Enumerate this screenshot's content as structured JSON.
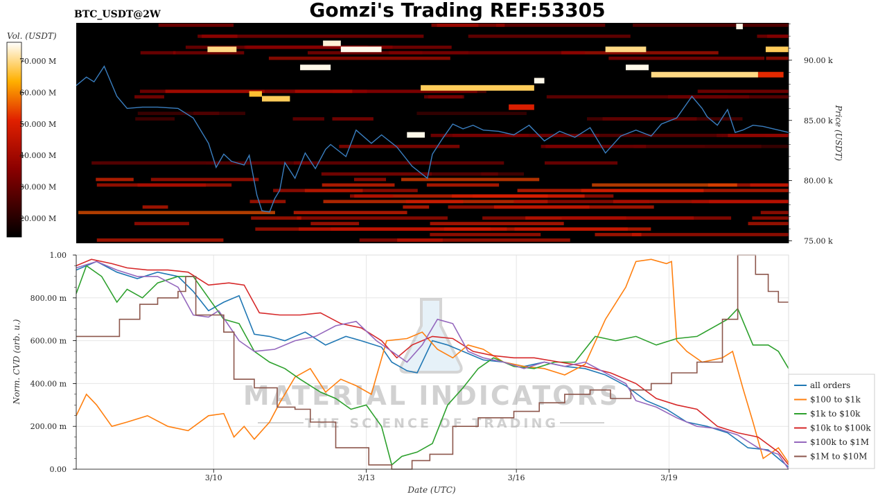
{
  "header": {
    "title": "Gomzi's Trading REF:53305",
    "symbol": "BTC_USDT@2W"
  },
  "watermark": {
    "line1": "MATERIAL INDICATORS",
    "line2": "THE SCIENCE OF TRADING"
  },
  "colors": {
    "price_line": "#3a7fc1",
    "heatmap_bg": "#000000",
    "grid": "#e6e6e6"
  },
  "chart_data": [
    {
      "type": "heatmap",
      "colorbar_label": "Vol. (USDT)",
      "colorbar_ticks": [
        "70.000 M",
        "60.000 M",
        "50.000 M",
        "40.000 M",
        "30.000 M",
        "20.000 M"
      ],
      "colorbar_values": [
        70000000,
        60000000,
        50000000,
        40000000,
        30000000,
        20000000
      ],
      "colorbar_range": [
        14000000,
        76000000
      ],
      "y_axis_label": "Price (USDT)",
      "y_ticks": [
        "90.00 k",
        "85.00 k",
        "80.00 k",
        "75.00 k"
      ],
      "y_tick_values": [
        90000,
        85000,
        80000,
        75000
      ],
      "ylim": [
        74800,
        93100
      ],
      "x_range_days": [
        0,
        14
      ],
      "price_series": {
        "x_days": [
          0,
          0.2,
          0.35,
          0.55,
          0.8,
          1.0,
          1.3,
          1.6,
          2.0,
          2.3,
          2.6,
          2.75,
          2.9,
          3.05,
          3.3,
          3.4,
          3.55,
          3.65,
          3.8,
          3.9,
          4.0,
          4.1,
          4.3,
          4.5,
          4.7,
          4.9,
          5.0,
          5.3,
          5.5,
          5.8,
          6.0,
          6.3,
          6.6,
          6.9,
          7.0,
          7.2,
          7.4,
          7.6,
          7.8,
          8.0,
          8.3,
          8.6,
          8.9,
          9.2,
          9.5,
          9.8,
          10.1,
          10.4,
          10.7,
          11.0,
          11.3,
          11.5,
          11.8,
          12.1,
          12.3,
          12.4,
          12.6,
          12.8,
          12.95,
          13.1,
          13.3,
          13.5,
          13.7,
          14.0
        ],
        "y": [
          87900,
          88600,
          88200,
          89500,
          87000,
          86000,
          86100,
          86100,
          86000,
          85200,
          83100,
          81100,
          82200,
          81600,
          81300,
          82100,
          78800,
          77500,
          77400,
          78500,
          79200,
          81500,
          80200,
          82300,
          81000,
          82600,
          83000,
          82000,
          84200,
          83100,
          83800,
          82800,
          81200,
          80200,
          82200,
          83500,
          84700,
          84300,
          84600,
          84200,
          84100,
          83800,
          84600,
          83300,
          84100,
          83600,
          84400,
          82300,
          83700,
          84200,
          83700,
          84700,
          85200,
          87000,
          86000,
          85300,
          84600,
          85900,
          84000,
          84200,
          84600,
          84500,
          84300,
          84000
        ]
      },
      "bright_levels": [
        {
          "price": 92800,
          "x_start": 12.97,
          "x_end": 13.1,
          "volume": 75000000
        },
        {
          "price": 91400,
          "x_start": 4.85,
          "x_end": 5.2,
          "volume": 74000000
        },
        {
          "price": 90900,
          "x_start": 2.58,
          "x_end": 3.15,
          "volume": 70000000
        },
        {
          "price": 90900,
          "x_start": 10.4,
          "x_end": 11.2,
          "volume": 70000000
        },
        {
          "price": 90900,
          "x_start": 13.55,
          "x_end": 14.0,
          "volume": 68000000
        },
        {
          "price": 90900,
          "x_start": 5.2,
          "x_end": 6.0,
          "volume": 75000000
        },
        {
          "price": 89400,
          "x_start": 4.4,
          "x_end": 5.0,
          "volume": 75000000
        },
        {
          "price": 89400,
          "x_start": 10.8,
          "x_end": 11.25,
          "volume": 75000000
        },
        {
          "price": 88800,
          "x_start": 11.3,
          "x_end": 13.4,
          "volume": 70000000
        },
        {
          "price": 88800,
          "x_start": 13.4,
          "x_end": 13.9,
          "volume": 52000000
        },
        {
          "price": 88300,
          "x_start": 9.0,
          "x_end": 9.2,
          "volume": 75000000
        },
        {
          "price": 87700,
          "x_start": 6.77,
          "x_end": 9.0,
          "volume": 68000000
        },
        {
          "price": 87200,
          "x_start": 3.4,
          "x_end": 3.65,
          "volume": 66000000
        },
        {
          "price": 86800,
          "x_start": 3.65,
          "x_end": 4.2,
          "volume": 68000000
        },
        {
          "price": 86100,
          "x_start": 8.5,
          "x_end": 9.0,
          "volume": 50000000
        },
        {
          "price": 83800,
          "x_start": 6.5,
          "x_end": 6.85,
          "volume": 75000000
        }
      ]
    },
    {
      "type": "line",
      "x_axis_label": "Date (UTC)",
      "y_axis_label": "Norm. CVD (arb. u.)",
      "x_tick_labels": [
        "3/10",
        "3/13",
        "3/16",
        "3/19"
      ],
      "x_tick_days": [
        2.7,
        5.7,
        8.65,
        11.65
      ],
      "y_ticks": [
        "0.00",
        "200.00 m",
        "400.00 m",
        "600.00 m",
        "800.00 m",
        "1.00"
      ],
      "y_tick_values": [
        0,
        0.2,
        0.4,
        0.6,
        0.8,
        1.0
      ],
      "ylim": [
        0,
        1
      ],
      "xlim_days": [
        0,
        14
      ],
      "legend_position": "lower-right outside",
      "series": [
        {
          "name": "all orders",
          "color": "#1f77b4",
          "x_days": [
            0,
            0.4,
            0.8,
            1.2,
            1.6,
            2.0,
            2.3,
            2.6,
            2.9,
            3.2,
            3.5,
            3.8,
            4.1,
            4.5,
            4.9,
            5.3,
            5.6,
            6.0,
            6.2,
            6.5,
            6.7,
            7.0,
            7.3,
            7.6,
            8.0,
            8.4,
            8.8,
            9.2,
            9.6,
            10.0,
            10.4,
            10.8,
            11.2,
            11.6,
            12.0,
            12.4,
            12.8,
            13.2,
            13.6,
            14.0
          ],
          "y": [
            0.93,
            0.97,
            0.92,
            0.89,
            0.92,
            0.9,
            0.83,
            0.74,
            0.78,
            0.81,
            0.63,
            0.62,
            0.6,
            0.64,
            0.58,
            0.62,
            0.6,
            0.57,
            0.5,
            0.46,
            0.45,
            0.6,
            0.58,
            0.55,
            0.51,
            0.5,
            0.48,
            0.5,
            0.48,
            0.47,
            0.44,
            0.39,
            0.32,
            0.28,
            0.22,
            0.2,
            0.17,
            0.1,
            0.09,
            0.01
          ]
        },
        {
          "name": "$100 to $1k",
          "color": "#ff7f0e",
          "x_days": [
            0,
            0.2,
            0.4,
            0.7,
            1.0,
            1.4,
            1.8,
            2.2,
            2.6,
            2.9,
            3.1,
            3.3,
            3.5,
            3.8,
            4.0,
            4.3,
            4.6,
            4.9,
            5.2,
            5.5,
            5.8,
            6.1,
            6.5,
            6.8,
            7.1,
            7.4,
            7.7,
            8.0,
            8.4,
            8.8,
            9.2,
            9.6,
            10.0,
            10.4,
            10.8,
            11.0,
            11.3,
            11.6,
            11.7,
            11.8,
            12.0,
            12.3,
            12.7,
            12.9,
            13.1,
            13.3,
            13.5,
            13.8,
            14.0
          ],
          "y": [
            0.25,
            0.35,
            0.3,
            0.2,
            0.22,
            0.25,
            0.2,
            0.18,
            0.25,
            0.26,
            0.15,
            0.2,
            0.14,
            0.22,
            0.31,
            0.43,
            0.47,
            0.36,
            0.42,
            0.39,
            0.35,
            0.6,
            0.61,
            0.64,
            0.56,
            0.52,
            0.58,
            0.56,
            0.5,
            0.48,
            0.47,
            0.44,
            0.49,
            0.7,
            0.85,
            0.97,
            0.98,
            0.96,
            0.97,
            0.6,
            0.55,
            0.5,
            0.52,
            0.55,
            0.38,
            0.22,
            0.05,
            0.1,
            0.03
          ]
        },
        {
          "name": "$1k to $10k",
          "color": "#2ca02c",
          "x_days": [
            0,
            0.2,
            0.5,
            0.8,
            1.0,
            1.3,
            1.6,
            2.0,
            2.3,
            2.6,
            2.9,
            3.2,
            3.5,
            3.8,
            4.1,
            4.4,
            4.8,
            5.1,
            5.4,
            5.7,
            6.0,
            6.2,
            6.4,
            6.7,
            7.0,
            7.3,
            7.6,
            7.9,
            8.2,
            8.6,
            9.0,
            9.4,
            9.8,
            10.2,
            10.6,
            11.0,
            11.4,
            11.8,
            12.2,
            12.5,
            12.8,
            13.0,
            13.3,
            13.6,
            13.8,
            14.0
          ],
          "y": [
            0.82,
            0.95,
            0.9,
            0.78,
            0.84,
            0.8,
            0.87,
            0.9,
            0.9,
            0.8,
            0.7,
            0.68,
            0.55,
            0.5,
            0.47,
            0.42,
            0.36,
            0.33,
            0.28,
            0.3,
            0.2,
            0.02,
            0.06,
            0.08,
            0.12,
            0.3,
            0.38,
            0.47,
            0.52,
            0.48,
            0.47,
            0.5,
            0.5,
            0.62,
            0.6,
            0.62,
            0.58,
            0.61,
            0.62,
            0.66,
            0.7,
            0.75,
            0.58,
            0.58,
            0.55,
            0.47
          ]
        },
        {
          "name": "$10k to $100k",
          "color": "#d62728",
          "x_days": [
            0,
            0.3,
            0.7,
            1.0,
            1.4,
            1.8,
            2.2,
            2.6,
            3.0,
            3.3,
            3.6,
            4.0,
            4.4,
            4.8,
            5.2,
            5.6,
            6.0,
            6.3,
            6.6,
            7.0,
            7.4,
            7.8,
            8.2,
            8.6,
            9.0,
            9.5,
            10.0,
            10.5,
            11.0,
            11.4,
            11.8,
            12.2,
            12.6,
            13.0,
            13.4,
            13.8,
            14.0
          ],
          "y": [
            0.95,
            0.98,
            0.96,
            0.94,
            0.93,
            0.93,
            0.92,
            0.86,
            0.87,
            0.86,
            0.73,
            0.72,
            0.72,
            0.73,
            0.68,
            0.66,
            0.6,
            0.52,
            0.58,
            0.62,
            0.61,
            0.55,
            0.53,
            0.52,
            0.52,
            0.5,
            0.48,
            0.45,
            0.4,
            0.33,
            0.3,
            0.28,
            0.2,
            0.17,
            0.15,
            0.08,
            0.02
          ]
        },
        {
          "name": "$100k to $1M",
          "color": "#9467bd",
          "x_days": [
            0,
            0.4,
            0.8,
            1.2,
            1.6,
            2.0,
            2.3,
            2.6,
            2.8,
            3.0,
            3.2,
            3.5,
            3.9,
            4.3,
            4.7,
            5.1,
            5.5,
            5.9,
            6.2,
            6.5,
            6.8,
            7.1,
            7.4,
            7.7,
            8.0,
            8.4,
            8.8,
            9.2,
            9.6,
            10.0,
            10.4,
            10.8,
            11.0,
            11.4,
            11.8,
            12.2,
            12.6,
            13.0,
            13.4,
            13.8,
            14.0
          ],
          "y": [
            0.94,
            0.97,
            0.93,
            0.9,
            0.9,
            0.85,
            0.72,
            0.71,
            0.74,
            0.67,
            0.6,
            0.55,
            0.56,
            0.6,
            0.62,
            0.67,
            0.69,
            0.6,
            0.55,
            0.5,
            0.58,
            0.7,
            0.68,
            0.55,
            0.52,
            0.5,
            0.47,
            0.5,
            0.48,
            0.5,
            0.45,
            0.4,
            0.32,
            0.29,
            0.24,
            0.2,
            0.19,
            0.16,
            0.1,
            0.07,
            0.0
          ]
        },
        {
          "name": "$1M to $10M",
          "color": "#8c564b",
          "step": true,
          "x_days": [
            0,
            0.4,
            0.85,
            1.25,
            1.6,
            2.0,
            2.15,
            2.35,
            2.9,
            3.1,
            3.5,
            3.95,
            4.3,
            4.6,
            5.1,
            5.75,
            6.2,
            6.6,
            6.95,
            7.4,
            7.9,
            8.6,
            9.1,
            9.6,
            10.1,
            10.5,
            10.9,
            11.3,
            11.7,
            12.2,
            12.55,
            12.7,
            13.0,
            13.35,
            13.6,
            13.8,
            14.0
          ],
          "y": [
            0.62,
            0.62,
            0.7,
            0.77,
            0.8,
            0.83,
            0.9,
            0.72,
            0.64,
            0.42,
            0.38,
            0.29,
            0.28,
            0.22,
            0.1,
            0.02,
            0.0,
            0.04,
            0.07,
            0.2,
            0.24,
            0.27,
            0.31,
            0.35,
            0.37,
            0.33,
            0.37,
            0.4,
            0.45,
            0.5,
            0.5,
            0.7,
            1.0,
            0.91,
            0.83,
            0.78,
            0.78
          ]
        }
      ]
    }
  ]
}
